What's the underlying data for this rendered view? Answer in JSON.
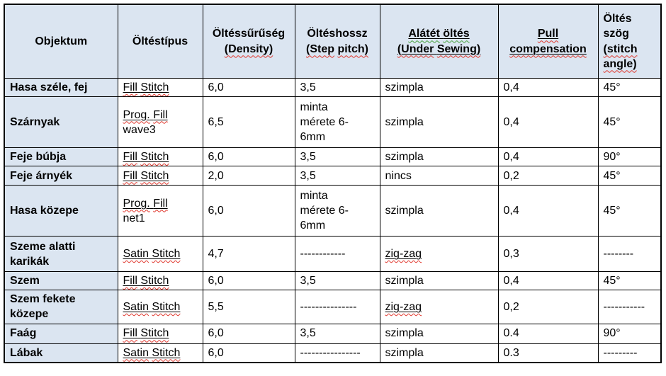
{
  "colors": {
    "header_bg": "#dbe5f1",
    "border_color": "#000000",
    "wavy_red": "#e0362c",
    "wavy_green": "#48a23f",
    "text_color": "#000000",
    "page_bg": "#ffffff"
  },
  "table": {
    "header": [
      [
        {
          "t": "Objektum"
        }
      ],
      [
        {
          "t": "Öltéstípus"
        }
      ],
      [
        {
          "t": "Öltéssűrűség"
        },
        {
          "nl": 1,
          "t": "(Density)",
          "w": "red"
        }
      ],
      [
        {
          "t": "Öltéshossz"
        },
        {
          "nl": 1,
          "t": "(Step",
          "w": "red"
        },
        {
          "t": " "
        },
        {
          "t": "pitch)",
          "w": "red"
        }
      ],
      [
        {
          "t": "Alátét",
          "u": 1,
          "w": "green"
        },
        {
          "t": " ",
          "u": 1
        },
        {
          "t": "öltés",
          "u": 1,
          "w": "green"
        },
        {
          "nl": 1,
          "t": "(Under",
          "u": 1,
          "w": "red"
        },
        {
          "t": " ",
          "u": 1
        },
        {
          "t": "Sewing)",
          "u": 1,
          "w": "red"
        }
      ],
      [
        {
          "t": "Pull",
          "u": 1,
          "w": "red"
        },
        {
          "nl": 1,
          "t": "compensation",
          "u": 1,
          "w": "red"
        }
      ],
      [
        {
          "t": "Öltés"
        },
        {
          "nl": 1,
          "t": "szög"
        },
        {
          "nl": 1,
          "t": "(stitch",
          "w": "red"
        },
        {
          "nl": 1,
          "t": "angle)",
          "w": "red"
        }
      ]
    ],
    "rows": [
      {
        "label": [
          {
            "t": "Hasa széle, fej"
          }
        ],
        "cells": [
          [
            {
              "t": "Fill",
              "u": 1,
              "w": "red"
            },
            {
              "t": " ",
              "u": 1
            },
            {
              "t": "Stitch",
              "u": 1,
              "w": "red"
            }
          ],
          [
            {
              "t": "6,0"
            }
          ],
          [
            {
              "t": "3,5"
            }
          ],
          [
            {
              "t": "szimpla"
            }
          ],
          [
            {
              "t": "0,4"
            }
          ],
          [
            {
              "t": "45°"
            }
          ]
        ]
      },
      {
        "label": [
          {
            "t": "Szárnyak"
          }
        ],
        "cells": [
          [
            {
              "t": "Prog.",
              "u": 1,
              "w": "red"
            },
            {
              "t": " ",
              "u": 1
            },
            {
              "t": "Fill",
              "u": 1,
              "w": "red"
            },
            {
              "nl": 1,
              "t": "wave3"
            }
          ],
          [
            {
              "t": "6,5"
            }
          ],
          [
            {
              "t": "minta"
            },
            {
              "nl": 1,
              "t": "mérete 6-"
            },
            {
              "nl": 1,
              "t": "6mm"
            }
          ],
          [
            {
              "t": "szimpla"
            }
          ],
          [
            {
              "t": "0,4"
            }
          ],
          [
            {
              "t": "45°"
            }
          ]
        ]
      },
      {
        "label": [
          {
            "t": "Feje búbja"
          }
        ],
        "cells": [
          [
            {
              "t": "Fill",
              "u": 1,
              "w": "red"
            },
            {
              "t": " ",
              "u": 1
            },
            {
              "t": "Stitch",
              "u": 1,
              "w": "red"
            }
          ],
          [
            {
              "t": "6,0"
            }
          ],
          [
            {
              "t": "3,5"
            }
          ],
          [
            {
              "t": "szimpla"
            }
          ],
          [
            {
              "t": "0,4"
            }
          ],
          [
            {
              "t": "90°"
            }
          ]
        ]
      },
      {
        "label": [
          {
            "t": "Feje árnyék"
          }
        ],
        "cells": [
          [
            {
              "t": "Fill",
              "u": 1,
              "w": "red"
            },
            {
              "t": " ",
              "u": 1
            },
            {
              "t": "Stitch",
              "u": 1,
              "w": "red"
            }
          ],
          [
            {
              "t": "2,0"
            }
          ],
          [
            {
              "t": "3,5"
            }
          ],
          [
            {
              "t": "nincs"
            }
          ],
          [
            {
              "t": "0,2"
            }
          ],
          [
            {
              "t": "45°"
            }
          ]
        ]
      },
      {
        "label": [
          {
            "t": "Hasa közepe"
          }
        ],
        "cells": [
          [
            {
              "t": "Prog.",
              "u": 1,
              "w": "red"
            },
            {
              "t": " ",
              "u": 1
            },
            {
              "t": "Fill",
              "u": 1,
              "w": "red"
            },
            {
              "nl": 1,
              "t": "net1"
            }
          ],
          [
            {
              "t": "6,0"
            }
          ],
          [
            {
              "t": "minta"
            },
            {
              "nl": 1,
              "t": "mérete 6-"
            },
            {
              "nl": 1,
              "t": "6mm"
            }
          ],
          [
            {
              "t": "szimpla"
            }
          ],
          [
            {
              "t": "0,4"
            }
          ],
          [
            {
              "t": "45°"
            }
          ]
        ]
      },
      {
        "label": [
          {
            "t": "Szeme alatti"
          },
          {
            "nl": 1,
            "t": "karikák"
          }
        ],
        "cells": [
          [
            {
              "t": "Satin",
              "u": 1,
              "w": "red"
            },
            {
              "t": " ",
              "u": 1
            },
            {
              "t": "Stitch",
              "u": 1,
              "w": "red"
            }
          ],
          [
            {
              "t": "4,7"
            }
          ],
          [
            {
              "t": "------------"
            }
          ],
          [
            {
              "t": "zig-zag",
              "u": 1,
              "w": "red"
            }
          ],
          [
            {
              "t": "0,3"
            }
          ],
          [
            {
              "t": "--------"
            }
          ]
        ]
      },
      {
        "label": [
          {
            "t": "Szem"
          }
        ],
        "cells": [
          [
            {
              "t": "Fill",
              "u": 1,
              "w": "red"
            },
            {
              "t": " ",
              "u": 1
            },
            {
              "t": "Stitch",
              "u": 1,
              "w": "red"
            }
          ],
          [
            {
              "t": "6,0"
            }
          ],
          [
            {
              "t": "3,5"
            }
          ],
          [
            {
              "t": "szimpla"
            }
          ],
          [
            {
              "t": "0,4"
            }
          ],
          [
            {
              "t": "45°"
            }
          ]
        ]
      },
      {
        "label": [
          {
            "t": "Szem fekete"
          },
          {
            "nl": 1,
            "t": "közepe"
          }
        ],
        "cells": [
          [
            {
              "t": "Satin",
              "u": 1,
              "w": "red"
            },
            {
              "t": " ",
              "u": 1
            },
            {
              "t": "Stitch",
              "u": 1,
              "w": "red"
            }
          ],
          [
            {
              "t": "5,5"
            }
          ],
          [
            {
              "t": "---------------"
            }
          ],
          [
            {
              "t": "zig-zag",
              "u": 1,
              "w": "red"
            }
          ],
          [
            {
              "t": "0,2"
            }
          ],
          [
            {
              "t": "-----------"
            }
          ]
        ]
      },
      {
        "label": [
          {
            "t": "Faág"
          }
        ],
        "cells": [
          [
            {
              "t": "Fill",
              "u": 1,
              "w": "red"
            },
            {
              "t": " ",
              "u": 1
            },
            {
              "t": "Stitch",
              "u": 1,
              "w": "red"
            }
          ],
          [
            {
              "t": "6,0"
            }
          ],
          [
            {
              "t": "3,5"
            }
          ],
          [
            {
              "t": "szimpla"
            }
          ],
          [
            {
              "t": "0.4"
            }
          ],
          [
            {
              "t": "90°"
            }
          ]
        ]
      },
      {
        "label": [
          {
            "t": "Lábak"
          }
        ],
        "cells": [
          [
            {
              "t": "Satin",
              "u": 1,
              "w": "red"
            },
            {
              "t": " ",
              "u": 1
            },
            {
              "t": "Stitch",
              "u": 1,
              "w": "red"
            }
          ],
          [
            {
              "t": "6,0"
            }
          ],
          [
            {
              "t": "----------------"
            }
          ],
          [
            {
              "t": "szimpla"
            }
          ],
          [
            {
              "t": "0.3"
            }
          ],
          [
            {
              "t": "---------"
            }
          ]
        ]
      }
    ]
  }
}
